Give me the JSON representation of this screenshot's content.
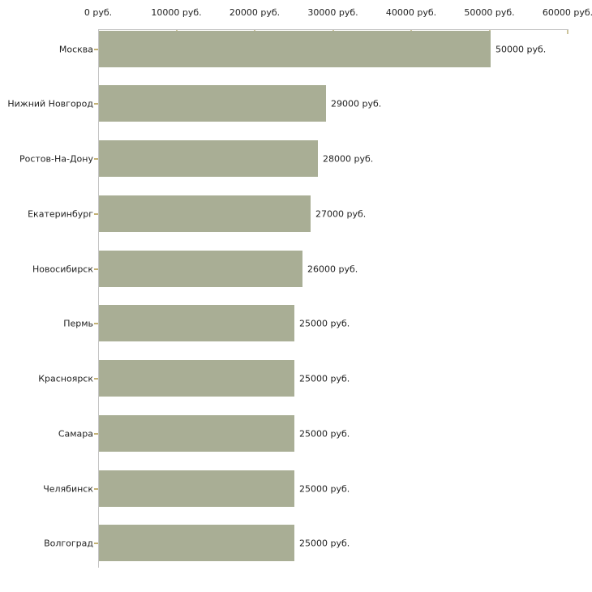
{
  "page": {
    "background": "#ffffff"
  },
  "chart_data": {
    "type": "bar",
    "orientation": "horizontal",
    "title": "",
    "xlabel": "",
    "ylabel": "",
    "unit_suffix": "руб.",
    "categories": [
      "Москва",
      "Нижний Новгород",
      "Ростов-На-Дону",
      "Екатеринбург",
      "Новосибирск",
      "Пермь",
      "Красноярск",
      "Самара",
      "Челябинск",
      "Волгоград"
    ],
    "values": [
      50000,
      29000,
      28000,
      27000,
      26000,
      25000,
      25000,
      25000,
      25000,
      25000
    ],
    "bar_value_labels": [
      "50000 руб.",
      "29000 руб.",
      "28000 руб.",
      "27000 руб.",
      "26000 руб.",
      "25000 руб.",
      "25000 руб.",
      "25000 руб.",
      "25000 руб.",
      "25000 руб."
    ],
    "x_ticks": [
      0,
      10000,
      20000,
      30000,
      40000,
      50000,
      60000
    ],
    "x_tick_labels": [
      "0 руб.",
      "10000 руб.",
      "20000 руб.",
      "30000 руб.",
      "40000 руб.",
      "50000 руб.",
      "60000 руб."
    ],
    "xlim": [
      0,
      60000
    ],
    "grid": false,
    "legend_position": "none",
    "colors": {
      "bar": "#a9ae95",
      "axis": "#c4c4c4",
      "x_tick_mark": "#cdc49c",
      "y_tick_mark": "#c3b174",
      "text": "#1f1f1f",
      "background": "#ffffff"
    }
  }
}
